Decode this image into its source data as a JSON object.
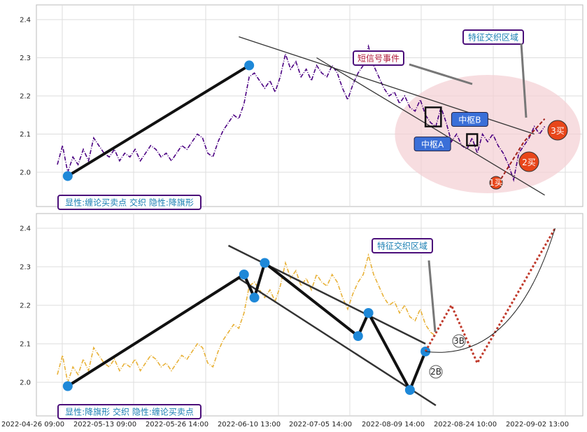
{
  "colors": {
    "top_price": "#4b0082",
    "bottom_price": "#e8b23a",
    "stroke_main": "#111111",
    "channel": "#333333",
    "node": "#1e88d8",
    "zone_fill": "#f4cfd3",
    "buy_point": "#e8461a",
    "label_box_border": "#4b0f7a",
    "label_text": "#1a7fb3",
    "event_text": "#b0183a",
    "zhongshu_fill": "#3a6fd8"
  },
  "x_tick_labels": [
    "2022-04-26 09:00",
    "2022-05-13 09:00",
    "2022-05-26 14:00",
    "2022-06-10 13:00",
    "2022-07-05 14:00",
    "2022-08-09 14:00",
    "2022-08-24 10:00",
    "2022-09-02 13:00"
  ],
  "chart_data": [
    {
      "type": "line",
      "panel": "top",
      "ylim": [
        1.91,
        2.43
      ],
      "y_ticks": [
        "2.0",
        "2.1",
        "2.2",
        "2.3",
        "2.4"
      ],
      "x_range": [
        0,
        100
      ],
      "price_series": {
        "name": "",
        "x": [
          0,
          1,
          2,
          3,
          4,
          5,
          6,
          7,
          8,
          9,
          10,
          11,
          12,
          13,
          14,
          15,
          16,
          17,
          18,
          19,
          20,
          21,
          22,
          23,
          24,
          25,
          26,
          27,
          28,
          29,
          30,
          31,
          32,
          33,
          34,
          35,
          36,
          37,
          38,
          39,
          40,
          41,
          42,
          43,
          44,
          45,
          46,
          47,
          48,
          49,
          50,
          51,
          52,
          53,
          54,
          55,
          56,
          57,
          58,
          59,
          60,
          61,
          62,
          63,
          64,
          65,
          66,
          67,
          68,
          69,
          70,
          71,
          72,
          73,
          74,
          75,
          76,
          77,
          78,
          79,
          80,
          81,
          82,
          83,
          84,
          85,
          86,
          87,
          88,
          89,
          90,
          91,
          92,
          93,
          94
        ],
        "y": [
          2.02,
          2.07,
          2.0,
          2.04,
          2.02,
          2.06,
          2.03,
          2.09,
          2.07,
          2.05,
          2.04,
          2.06,
          2.03,
          2.05,
          2.04,
          2.06,
          2.03,
          2.05,
          2.07,
          2.06,
          2.04,
          2.05,
          2.03,
          2.05,
          2.07,
          2.06,
          2.08,
          2.1,
          2.09,
          2.05,
          2.04,
          2.08,
          2.11,
          2.13,
          2.15,
          2.14,
          2.18,
          2.25,
          2.26,
          2.24,
          2.22,
          2.24,
          2.21,
          2.25,
          2.31,
          2.27,
          2.29,
          2.25,
          2.27,
          2.24,
          2.28,
          2.26,
          2.25,
          2.28,
          2.26,
          2.22,
          2.19,
          2.23,
          2.26,
          2.28,
          2.33,
          2.28,
          2.25,
          2.22,
          2.2,
          2.21,
          2.18,
          2.2,
          2.17,
          2.16,
          2.19,
          2.15,
          2.13,
          2.12,
          2.17,
          2.13,
          2.08,
          2.1,
          2.07,
          2.06,
          2.09,
          2.05,
          2.1,
          2.08,
          2.1,
          2.07,
          2.05,
          2.02,
          1.98,
          2.05,
          2.07,
          2.09,
          2.12,
          2.1,
          2.12
        ]
      },
      "stroke_points": [
        {
          "x": 2,
          "y": 1.99
        },
        {
          "x": 37,
          "y": 2.28
        }
      ],
      "channel_lines": [
        {
          "x1": 35,
          "y1": 2.355,
          "x2": 92,
          "y2": 2.1
        },
        {
          "x1": 50,
          "y1": 2.3,
          "x2": 94,
          "y2": 1.94
        }
      ],
      "zhongshu": [
        {
          "label": "中枢A",
          "x1": 71,
          "x2": 74,
          "y1": 2.12,
          "y2": 2.17
        },
        {
          "label": "中枢B",
          "x1": 79,
          "x2": 81,
          "y1": 2.07,
          "y2": 2.1
        }
      ],
      "future_strokes": [
        {
          "x": 85,
          "y": 1.97
        },
        {
          "x": 90,
          "y": 2.08
        },
        {
          "x": 94,
          "y": 2.14
        }
      ],
      "zone": {
        "cx": 83,
        "cy": 2.1,
        "rx": 17,
        "ry": 0.155
      },
      "annotations": {
        "zone_label": "特征交织区域",
        "event_label": "短信号事件",
        "buy1": "1买",
        "buy2": "2买",
        "buy3": "3买",
        "legend": "显性:缠论买卖点 交织 隐性:降旗形"
      }
    },
    {
      "type": "line",
      "panel": "bottom",
      "ylim": [
        1.91,
        2.43
      ],
      "y_ticks": [
        "2.0",
        "2.1",
        "2.2",
        "2.3",
        "2.4"
      ],
      "x_range": [
        0,
        100
      ],
      "price_series": {
        "name": "",
        "x": [
          0,
          1,
          2,
          3,
          4,
          5,
          6,
          7,
          8,
          9,
          10,
          11,
          12,
          13,
          14,
          15,
          16,
          17,
          18,
          19,
          20,
          21,
          22,
          23,
          24,
          25,
          26,
          27,
          28,
          29,
          30,
          31,
          32,
          33,
          34,
          35,
          36,
          37,
          38,
          39,
          40,
          41,
          42,
          43,
          44,
          45,
          46,
          47,
          48,
          49,
          50,
          51,
          52,
          53,
          54,
          55,
          56,
          57,
          58,
          59,
          60,
          61,
          62,
          63,
          64,
          65,
          66,
          67,
          68,
          69,
          70,
          71,
          72,
          73
        ],
        "y": [
          2.02,
          2.07,
          2.0,
          2.04,
          2.02,
          2.06,
          2.03,
          2.09,
          2.07,
          2.05,
          2.04,
          2.06,
          2.03,
          2.05,
          2.04,
          2.06,
          2.03,
          2.05,
          2.07,
          2.06,
          2.04,
          2.05,
          2.03,
          2.05,
          2.07,
          2.06,
          2.08,
          2.1,
          2.09,
          2.05,
          2.04,
          2.08,
          2.11,
          2.13,
          2.15,
          2.14,
          2.18,
          2.25,
          2.26,
          2.24,
          2.22,
          2.24,
          2.21,
          2.25,
          2.31,
          2.27,
          2.29,
          2.25,
          2.27,
          2.24,
          2.28,
          2.26,
          2.25,
          2.28,
          2.26,
          2.22,
          2.19,
          2.23,
          2.26,
          2.28,
          2.33,
          2.28,
          2.25,
          2.22,
          2.2,
          2.21,
          2.18,
          2.2,
          2.17,
          2.16,
          2.19,
          2.15,
          2.13,
          2.12
        ]
      },
      "stroke_points": [
        {
          "x": 2,
          "y": 1.99
        },
        {
          "x": 36,
          "y": 2.28
        },
        {
          "x": 38,
          "y": 2.22
        },
        {
          "x": 40,
          "y": 2.31
        },
        {
          "x": 58,
          "y": 2.12
        },
        {
          "x": 60,
          "y": 2.18
        },
        {
          "x": 68,
          "y": 1.98
        },
        {
          "x": 71,
          "y": 2.08
        }
      ],
      "channel_lines": [
        {
          "x1": 33,
          "y1": 2.355,
          "x2": 71,
          "y2": 2.1
        },
        {
          "x1": 35,
          "y1": 2.27,
          "x2": 73,
          "y2": 1.94
        }
      ],
      "future_path": [
        {
          "x": 71,
          "y": 2.08
        },
        {
          "x": 76,
          "y": 2.2
        },
        {
          "x": 81,
          "y": 2.05
        },
        {
          "x": 96,
          "y": 2.4
        }
      ],
      "annotations": {
        "zone_label": "特征交织区域",
        "b2": "2B",
        "b3": "3B",
        "legend": "显性:降旗形 交织 隐性:缠论买卖点"
      }
    }
  ]
}
